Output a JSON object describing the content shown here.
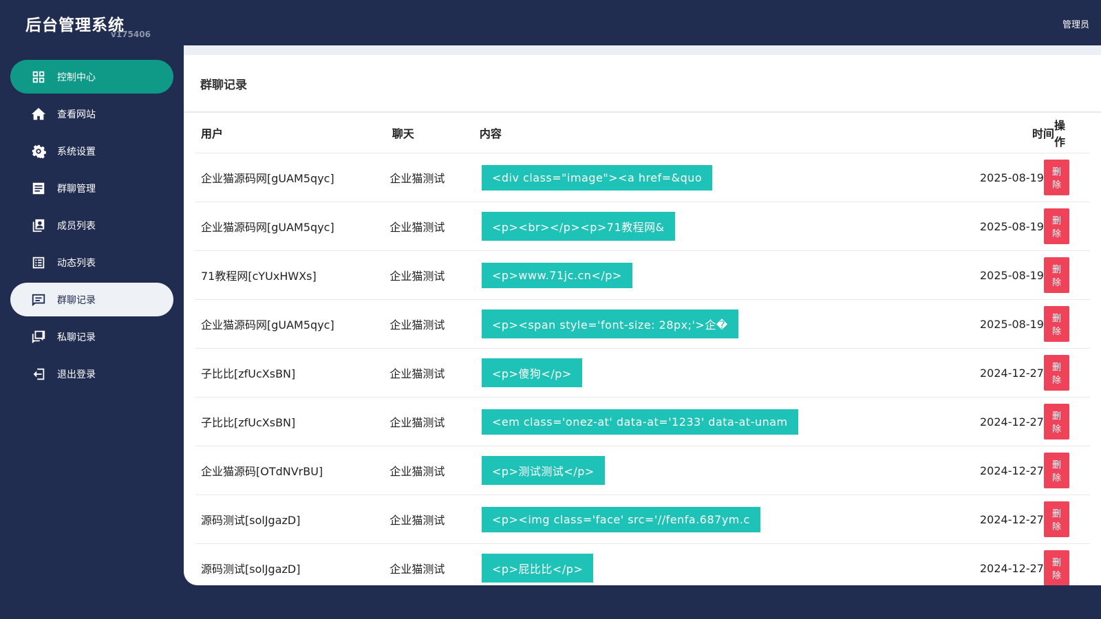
{
  "header": {
    "title": "后台管理系统",
    "version": "v175406",
    "user": "管理员"
  },
  "nav": [
    "控制中心",
    "查看网站",
    "系统设置",
    "群聊管理",
    "成员列表",
    "动态列表",
    "群聊记录",
    "私聊记录",
    "退出登录"
  ],
  "page": {
    "title": "群聊记录"
  },
  "table": {
    "headers": [
      "用户",
      "聊天",
      "内容",
      "时间",
      "操作"
    ],
    "rows": [
      [
        "企业猫源码网[gUAM5qyc]",
        "企业猫测试",
        "<div class=\"image\"><a href=&quo",
        "2025-08-19",
        "删除"
      ],
      [
        "企业猫源码网[gUAM5qyc]",
        "企业猫测试",
        "<p><br></p><p>71教程网&",
        "2025-08-19",
        "删除"
      ],
      [
        "71教程网[cYUxHWXs]",
        "企业猫测试",
        "<p>www.71jc.cn</p>",
        "2025-08-19",
        "删除"
      ],
      [
        "企业猫源码网[gUAM5qyc]",
        "企业猫测试",
        "<p><span style='font-size: 28px;'>企�",
        "2025-08-19",
        "删除"
      ],
      [
        "子比比[zfUcXsBN]",
        "企业猫测试",
        "<p>傻狗</p>",
        "2024-12-27",
        "删除"
      ],
      [
        "子比比[zfUcXsBN]",
        "企业猫测试",
        "<em class='onez-at' data-at='1233' data-at-unam",
        "2024-12-27",
        "删除"
      ],
      [
        "企业猫源码[OTdNVrBU]",
        "企业猫测试",
        "<p>测试测试</p>",
        "2024-12-27",
        "删除"
      ],
      [
        "源码测试[solJgazD]",
        "企业猫测试",
        "<p><img class='face' src='//fenfa.687ym.c",
        "2024-12-27",
        "删除"
      ],
      [
        "源码测试[solJgazD]",
        "企业猫测试",
        "<p>屁比比</p>",
        "2024-12-27",
        "删除"
      ]
    ]
  }
}
